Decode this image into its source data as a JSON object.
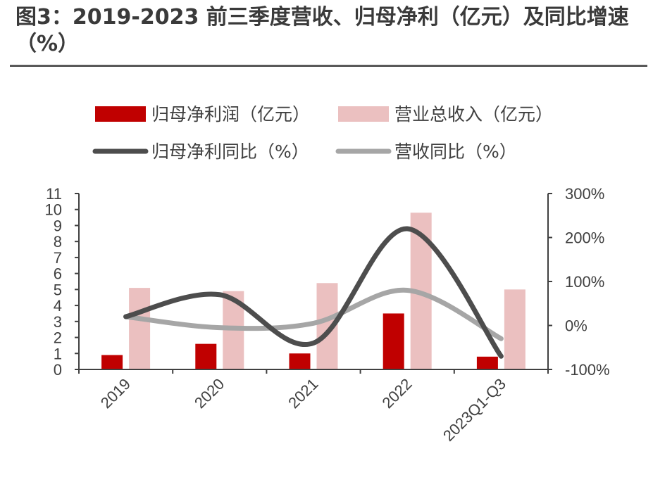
{
  "header": {
    "title": "图3：2019-2023 前三季度营收、归母净利（亿元）及同比增速（%）"
  },
  "chart_data": {
    "type": "bar",
    "categories": [
      "2019",
      "2020",
      "2021",
      "2022",
      "2023Q1-Q3"
    ],
    "series": [
      {
        "name": "归母净利润（亿元）",
        "type": "bar",
        "axis": "left",
        "color": "#C00000",
        "values": [
          0.9,
          1.6,
          1.0,
          3.5,
          0.8
        ]
      },
      {
        "name": "营业总收入（亿元）",
        "type": "bar",
        "axis": "left",
        "color": "#EBC0C0",
        "values": [
          5.1,
          4.9,
          5.4,
          9.8,
          5.0
        ]
      },
      {
        "name": "归母净利同比（%）",
        "type": "line",
        "axis": "right",
        "color": "#4D4D4D",
        "values": [
          20,
          70,
          -40,
          220,
          -70
        ]
      },
      {
        "name": "营收同比（%）",
        "type": "line",
        "axis": "right",
        "color": "#A6A6A6",
        "values": [
          20,
          -5,
          5,
          80,
          -30
        ]
      }
    ],
    "y_left": {
      "min": 0,
      "max": 11,
      "ticks": [
        "0",
        "1",
        "2",
        "3",
        "4",
        "5",
        "6",
        "7",
        "8",
        "9",
        "10",
        "11"
      ]
    },
    "y_right": {
      "min": -100,
      "max": 300,
      "ticks": [
        "-100%",
        "0%",
        "100%",
        "200%",
        "300%"
      ]
    },
    "legend_position": "top",
    "grid": false
  }
}
